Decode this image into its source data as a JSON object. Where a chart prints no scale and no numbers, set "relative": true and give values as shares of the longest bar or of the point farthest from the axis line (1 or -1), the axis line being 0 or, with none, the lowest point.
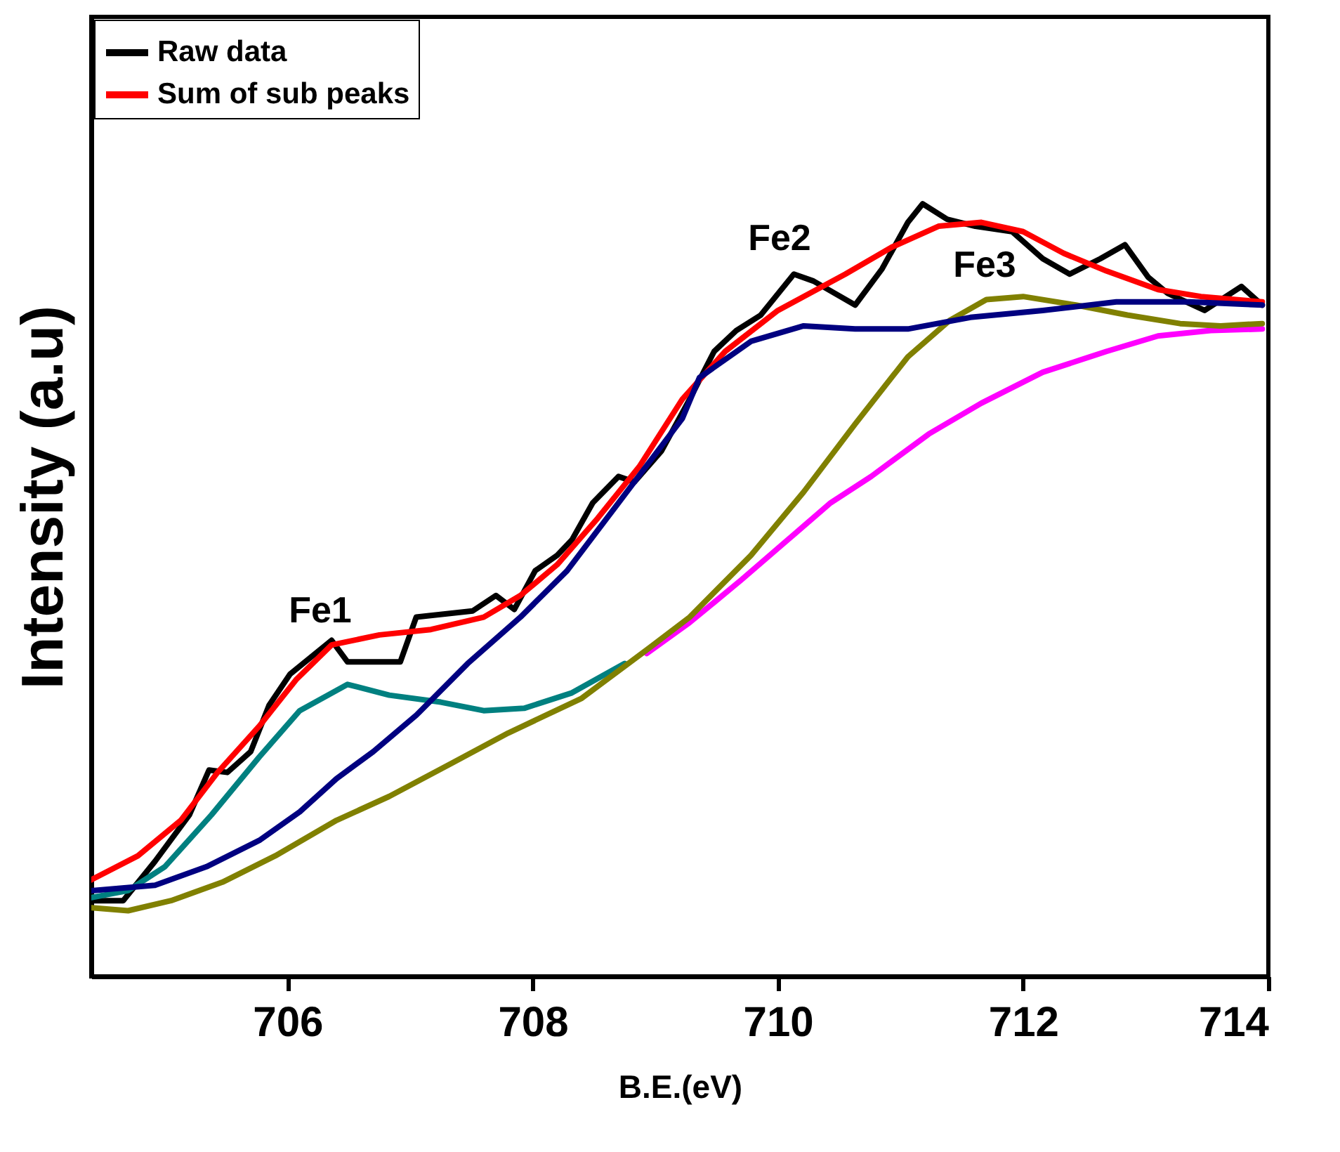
{
  "chart_data": {
    "type": "line",
    "xlabel": "B.E.(eV)",
    "ylabel": "Intensity (a.u)",
    "relative": true,
    "xlim": [
      704.4,
      714
    ],
    "xticks": [
      706,
      708,
      710,
      712,
      714
    ],
    "grid": false,
    "legend": "top left",
    "line_style": "solid",
    "marker": "none",
    "annotations": [
      "Fe1",
      "Fe2",
      "Fe3"
    ],
    "series": [
      {
        "name": "Raw data",
        "color": "#000000",
        "x": [
          704.4,
          704.66,
          704.92,
          705.2,
          705.36,
          705.51,
          705.7,
          705.85,
          706.02,
          706.36,
          706.49,
          706.92,
          707.05,
          707.51,
          707.7,
          707.85,
          708.02,
          708.2,
          708.32,
          708.49,
          708.7,
          708.83,
          709.05,
          709.28,
          709.48,
          709.66,
          709.86,
          710.13,
          710.29,
          710.63,
          710.85,
          711.06,
          711.18,
          711.38,
          711.61,
          711.91,
          712.16,
          712.38,
          712.63,
          712.83,
          713.02,
          713.18,
          713.48,
          713.78,
          713.95
        ],
        "values": [
          0.098,
          0.098,
          0.149,
          0.209,
          0.267,
          0.264,
          0.291,
          0.351,
          0.391,
          0.435,
          0.407,
          0.407,
          0.465,
          0.473,
          0.493,
          0.475,
          0.525,
          0.545,
          0.565,
          0.613,
          0.647,
          0.64,
          0.68,
          0.747,
          0.809,
          0.836,
          0.856,
          0.909,
          0.9,
          0.869,
          0.916,
          0.976,
          1.0,
          0.98,
          0.971,
          0.964,
          0.929,
          0.909,
          0.929,
          0.947,
          0.905,
          0.884,
          0.862,
          0.893,
          0.869
        ]
      },
      {
        "name": "Sum of sub peaks",
        "color": "#ff0000",
        "x": [
          704.4,
          704.78,
          705.13,
          705.43,
          705.77,
          706.07,
          706.36,
          706.75,
          707.17,
          707.6,
          707.9,
          708.2,
          708.53,
          708.87,
          709.22,
          709.57,
          710.0,
          710.55,
          710.93,
          711.31,
          711.66,
          712.0,
          712.33,
          712.68,
          713.1,
          713.45,
          713.95
        ],
        "values": [
          0.125,
          0.156,
          0.202,
          0.264,
          0.324,
          0.384,
          0.429,
          0.442,
          0.449,
          0.465,
          0.493,
          0.533,
          0.593,
          0.66,
          0.747,
          0.809,
          0.862,
          0.909,
          0.944,
          0.971,
          0.976,
          0.964,
          0.936,
          0.913,
          0.889,
          0.88,
          0.873
        ]
      },
      {
        "color": "#008080",
        "x": [
          704.4,
          704.7,
          705.0,
          705.38,
          705.77,
          706.1,
          706.49,
          706.83,
          707.25,
          707.6,
          707.93,
          708.32,
          708.75
        ],
        "values": [
          0.102,
          0.111,
          0.142,
          0.209,
          0.284,
          0.344,
          0.378,
          0.364,
          0.355,
          0.344,
          0.347,
          0.367,
          0.405
        ]
      },
      {
        "color": "#ff00ff",
        "x": [
          708.93,
          709.28,
          709.7,
          710.08,
          710.43,
          710.76,
          711.23,
          711.66,
          712.16,
          712.68,
          713.1,
          713.53,
          713.95
        ],
        "values": [
          0.418,
          0.458,
          0.513,
          0.565,
          0.613,
          0.647,
          0.702,
          0.742,
          0.782,
          0.809,
          0.829,
          0.836,
          0.838
        ]
      },
      {
        "color": "#808000",
        "x": [
          704.4,
          704.7,
          705.05,
          705.47,
          705.9,
          706.4,
          706.83,
          707.34,
          707.8,
          708.4,
          708.95,
          709.28,
          709.78,
          710.21,
          710.63,
          711.06,
          711.4,
          711.7,
          712.0,
          712.43,
          712.85,
          713.28,
          713.61,
          713.95
        ],
        "values": [
          0.089,
          0.085,
          0.098,
          0.122,
          0.156,
          0.202,
          0.233,
          0.276,
          0.315,
          0.36,
          0.425,
          0.465,
          0.545,
          0.627,
          0.715,
          0.802,
          0.849,
          0.876,
          0.88,
          0.869,
          0.856,
          0.845,
          0.842,
          0.845
        ]
      },
      {
        "color": "#000080",
        "x": [
          704.4,
          704.92,
          705.34,
          705.77,
          706.1,
          706.4,
          706.7,
          707.05,
          707.47,
          707.9,
          708.28,
          708.7,
          709.22,
          709.36,
          709.78,
          710.21,
          710.63,
          711.06,
          711.57,
          712.16,
          712.76,
          713.36,
          713.95
        ],
        "values": [
          0.111,
          0.118,
          0.142,
          0.176,
          0.213,
          0.256,
          0.291,
          0.338,
          0.405,
          0.465,
          0.525,
          0.613,
          0.722,
          0.775,
          0.822,
          0.842,
          0.838,
          0.838,
          0.853,
          0.862,
          0.873,
          0.873,
          0.869
        ]
      }
    ]
  }
}
